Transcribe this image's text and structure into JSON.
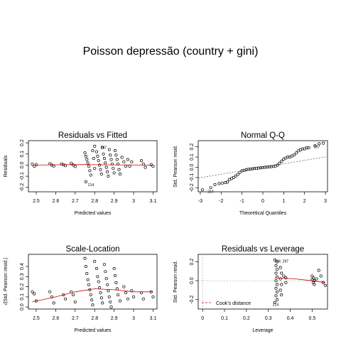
{
  "title": "Poisson depressão (country + gini)",
  "chart_data": [
    {
      "type": "scatter",
      "title": "Residuals vs Fitted",
      "xlabel": "Predicted values",
      "ylabel": "Residuals",
      "xlim": [
        2.46,
        3.12
      ],
      "ylim": [
        -0.24,
        0.22
      ],
      "xticks": [
        2.5,
        2.6,
        2.7,
        2.8,
        2.9,
        3.0,
        3.1
      ],
      "yticks": [
        -0.2,
        -0.1,
        0.0,
        0.1,
        0.2
      ],
      "ytick_labels": [
        "-0.2",
        "-0.1",
        "0.0",
        "0.1",
        "0.2"
      ],
      "smoother": {
        "x": [
          2.48,
          2.6,
          2.75,
          2.85,
          2.95,
          3.1
        ],
        "y": [
          0.0,
          0.003,
          0.005,
          0.003,
          0.002,
          0.0
        ]
      },
      "point_labels": [
        {
          "text": "214",
          "x": 2.755,
          "y": -0.175
        },
        {
          "text": "297",
          "x": 2.82,
          "y": 0.16
        }
      ],
      "series": [
        {
          "points": [
            [
              2.48,
              0.01
            ],
            [
              2.49,
              -0.01
            ],
            [
              2.5,
              0.005
            ],
            [
              2.57,
              0.012
            ],
            [
              2.58,
              0.0
            ],
            [
              2.59,
              -0.008
            ],
            [
              2.63,
              0.01
            ],
            [
              2.64,
              0.005
            ],
            [
              2.65,
              -0.005
            ],
            [
              2.68,
              0.018
            ],
            [
              2.69,
              0.0
            ],
            [
              2.7,
              -0.012
            ],
            [
              2.75,
              0.11
            ],
            [
              2.755,
              0.08
            ],
            [
              2.76,
              0.05
            ],
            [
              2.765,
              0.02
            ],
            [
              2.77,
              -0.01
            ],
            [
              2.775,
              -0.05
            ],
            [
              2.78,
              -0.09
            ],
            [
              2.79,
              0.13
            ],
            [
              2.795,
              0.06
            ],
            [
              2.8,
              -0.03
            ],
            [
              2.755,
              -0.15
            ],
            [
              2.8,
              0.17
            ],
            [
              2.81,
              0.12
            ],
            [
              2.815,
              0.08
            ],
            [
              2.82,
              0.04
            ],
            [
              2.825,
              0.0
            ],
            [
              2.83,
              -0.04
            ],
            [
              2.835,
              -0.08
            ],
            [
              2.84,
              0.16
            ],
            [
              2.845,
              0.1
            ],
            [
              2.85,
              0.06
            ],
            [
              2.855,
              0.02
            ],
            [
              2.86,
              -0.02
            ],
            [
              2.865,
              -0.06
            ],
            [
              2.87,
              -0.1
            ],
            [
              2.875,
              0.14
            ],
            [
              2.88,
              0.09
            ],
            [
              2.885,
              0.05
            ],
            [
              2.89,
              0.01
            ],
            [
              2.895,
              -0.03
            ],
            [
              2.9,
              -0.07
            ],
            [
              2.905,
              0.13
            ],
            [
              2.91,
              0.09
            ],
            [
              2.915,
              0.05
            ],
            [
              2.92,
              0.01
            ],
            [
              2.925,
              -0.04
            ],
            [
              2.93,
              -0.08
            ],
            [
              2.94,
              0.07
            ],
            [
              2.95,
              0.03
            ],
            [
              2.96,
              -0.01
            ],
            [
              2.97,
              0.05
            ],
            [
              2.98,
              -0.01
            ],
            [
              2.99,
              0.03
            ],
            [
              3.04,
              0.04
            ],
            [
              3.05,
              0.01
            ],
            [
              3.06,
              -0.02
            ],
            [
              3.09,
              0.005
            ],
            [
              3.1,
              -0.01
            ]
          ]
        }
      ]
    },
    {
      "type": "scatter",
      "title": "Normal Q-Q",
      "xlabel": "Theoretical Quantiles",
      "ylabel": "Std. Pearson resid.",
      "xlim": [
        -3.1,
        3.1
      ],
      "ylim": [
        -0.24,
        0.26
      ],
      "xticks": [
        -3,
        -2,
        -1,
        0,
        1,
        2,
        3
      ],
      "yticks": [
        -0.2,
        -0.1,
        0.0,
        0.1,
        0.2
      ],
      "ytick_labels": [
        "-0.2",
        "-0.1",
        "0.0",
        "0.1",
        "0.2"
      ],
      "reference_line": {
        "x": [
          -3.1,
          3.1
        ],
        "y": [
          -0.105,
          0.105
        ]
      },
      "point_labels": [
        {
          "text": "214",
          "x": -2.75,
          "y": -0.235
        },
        {
          "text": "297",
          "x": 2.35,
          "y": 0.2
        }
      ],
      "series": [
        {
          "points": [
            [
              -2.9,
              -0.22
            ],
            [
              -2.5,
              -0.2
            ],
            [
              -2.3,
              -0.17
            ],
            [
              -2.1,
              -0.16
            ],
            [
              -1.95,
              -0.155
            ],
            [
              -1.8,
              -0.15
            ],
            [
              -1.7,
              -0.145
            ],
            [
              -1.6,
              -0.12
            ],
            [
              -1.5,
              -0.11
            ],
            [
              -1.4,
              -0.1
            ],
            [
              -1.3,
              -0.085
            ],
            [
              -1.2,
              -0.07
            ],
            [
              -1.1,
              -0.05
            ],
            [
              -1.0,
              -0.035
            ],
            [
              -0.9,
              -0.03
            ],
            [
              -0.8,
              -0.025
            ],
            [
              -0.7,
              -0.02
            ],
            [
              -0.6,
              -0.018
            ],
            [
              -0.5,
              -0.015
            ],
            [
              -0.4,
              -0.012
            ],
            [
              -0.3,
              -0.01
            ],
            [
              -0.2,
              -0.008
            ],
            [
              -0.1,
              -0.005
            ],
            [
              0.0,
              -0.003
            ],
            [
              0.1,
              0.0
            ],
            [
              0.2,
              0.002
            ],
            [
              0.3,
              0.004
            ],
            [
              0.4,
              0.006
            ],
            [
              0.5,
              0.008
            ],
            [
              0.6,
              0.012
            ],
            [
              0.7,
              0.02
            ],
            [
              0.8,
              0.04
            ],
            [
              0.9,
              0.06
            ],
            [
              1.0,
              0.08
            ],
            [
              1.1,
              0.09
            ],
            [
              1.2,
              0.1
            ],
            [
              1.3,
              0.1
            ],
            [
              1.4,
              0.11
            ],
            [
              1.5,
              0.12
            ],
            [
              1.6,
              0.14
            ],
            [
              1.7,
              0.16
            ],
            [
              1.8,
              0.17
            ],
            [
              1.9,
              0.18
            ],
            [
              2.0,
              0.18
            ],
            [
              2.1,
              0.19
            ],
            [
              2.2,
              0.19
            ],
            [
              2.5,
              0.21
            ],
            [
              2.7,
              0.23
            ],
            [
              2.9,
              0.235
            ]
          ]
        }
      ]
    },
    {
      "type": "scatter",
      "title": "Scale-Location",
      "xlabel": "Predicted values",
      "ylabel": "√|Std. Pearson resid.|",
      "xlim": [
        2.46,
        3.12
      ],
      "ylim": [
        -0.02,
        0.52
      ],
      "xticks": [
        2.5,
        2.6,
        2.7,
        2.8,
        2.9,
        3.0,
        3.1
      ],
      "yticks": [
        0.0,
        0.1,
        0.2,
        0.3,
        0.4
      ],
      "ytick_labels": [
        "0.0",
        "0.1",
        "0.2",
        "0.3",
        "0.4"
      ],
      "smoother": {
        "x": [
          2.48,
          2.6,
          2.7,
          2.8,
          2.9,
          3.0,
          3.1
        ],
        "y": [
          0.05,
          0.1,
          0.15,
          0.18,
          0.17,
          0.15,
          0.15
        ]
      },
      "series": [
        {
          "points": [
            [
              2.48,
              0.15
            ],
            [
              2.49,
              0.13
            ],
            [
              2.5,
              0.06
            ],
            [
              2.57,
              0.15
            ],
            [
              2.58,
              0.1
            ],
            [
              2.59,
              0.04
            ],
            [
              2.64,
              0.12
            ],
            [
              2.65,
              0.08
            ],
            [
              2.68,
              0.15
            ],
            [
              2.69,
              0.12
            ],
            [
              2.7,
              0.05
            ],
            [
              2.75,
              0.48
            ],
            [
              2.755,
              0.4
            ],
            [
              2.76,
              0.33
            ],
            [
              2.765,
              0.27
            ],
            [
              2.77,
              0.22
            ],
            [
              2.775,
              0.17
            ],
            [
              2.78,
              0.12
            ],
            [
              2.785,
              0.07
            ],
            [
              2.79,
              0.02
            ],
            [
              2.8,
              0.45
            ],
            [
              2.81,
              0.38
            ],
            [
              2.815,
              0.3
            ],
            [
              2.82,
              0.25
            ],
            [
              2.825,
              0.19
            ],
            [
              2.83,
              0.14
            ],
            [
              2.835,
              0.09
            ],
            [
              2.84,
              0.04
            ],
            [
              2.85,
              0.42
            ],
            [
              2.855,
              0.35
            ],
            [
              2.86,
              0.28
            ],
            [
              2.865,
              0.22
            ],
            [
              2.87,
              0.16
            ],
            [
              2.875,
              0.1
            ],
            [
              2.88,
              0.05
            ],
            [
              2.885,
              0.0
            ],
            [
              2.9,
              0.38
            ],
            [
              2.905,
              0.31
            ],
            [
              2.91,
              0.24
            ],
            [
              2.915,
              0.18
            ],
            [
              2.92,
              0.12
            ],
            [
              2.93,
              0.06
            ],
            [
              2.95,
              0.2
            ],
            [
              2.96,
              0.14
            ],
            [
              2.97,
              0.08
            ],
            [
              2.99,
              0.16
            ],
            [
              3.0,
              0.1
            ],
            [
              3.04,
              0.14
            ],
            [
              3.05,
              0.08
            ],
            [
              3.09,
              0.15
            ],
            [
              3.1,
              0.1
            ]
          ]
        }
      ]
    },
    {
      "type": "scatter",
      "title": "Residuals vs Leverage",
      "xlabel": "Leverage",
      "ylabel": "Std. Pearson resid.",
      "xlim": [
        -0.02,
        0.57
      ],
      "ylim": [
        -0.3,
        0.28
      ],
      "xticks": [
        0.0,
        0.1,
        0.2,
        0.3,
        0.4,
        0.5
      ],
      "yticks": [
        -0.2,
        0.0,
        0.2
      ],
      "ytick_labels": [
        "-0.2",
        "0.0",
        "0.2"
      ],
      "legend": {
        "entries": [
          "Cook's distance"
        ],
        "position": "bottom-left"
      },
      "smoother": {
        "x": [
          0.33,
          0.42,
          0.5,
          0.56
        ],
        "y": [
          0.03,
          0.02,
          0.0,
          -0.02
        ]
      },
      "point_labels": [
        {
          "text": "297",
          "x": 0.355,
          "y": 0.21
        },
        {
          "text": "296",
          "x": 0.32,
          "y": 0.21
        },
        {
          "text": "214",
          "x": 0.31,
          "y": -0.25
        }
      ],
      "series": [
        {
          "points": [
            [
              0.33,
              0.22
            ],
            [
              0.34,
              0.2
            ],
            [
              0.335,
              0.16
            ],
            [
              0.34,
              0.12
            ],
            [
              0.335,
              0.08
            ],
            [
              0.34,
              0.04
            ],
            [
              0.335,
              0.0
            ],
            [
              0.34,
              -0.04
            ],
            [
              0.335,
              -0.08
            ],
            [
              0.34,
              -0.12
            ],
            [
              0.335,
              -0.16
            ],
            [
              0.34,
              -0.2
            ],
            [
              0.33,
              -0.23
            ],
            [
              0.355,
              0.14
            ],
            [
              0.36,
              0.08
            ],
            [
              0.355,
              0.02
            ],
            [
              0.36,
              -0.04
            ],
            [
              0.355,
              -0.1
            ],
            [
              0.36,
              -0.15
            ],
            [
              0.37,
              0.05
            ],
            [
              0.38,
              -0.02
            ],
            [
              0.38,
              0.03
            ],
            [
              0.5,
              0.05
            ],
            [
              0.505,
              0.03
            ],
            [
              0.51,
              0.0
            ],
            [
              0.505,
              -0.02
            ],
            [
              0.51,
              -0.04
            ],
            [
              0.5,
              0.01
            ],
            [
              0.52,
              0.02
            ],
            [
              0.53,
              0.11
            ],
            [
              0.54,
              0.05
            ],
            [
              0.55,
              -0.02
            ],
            [
              0.56,
              -0.05
            ]
          ]
        }
      ]
    }
  ]
}
